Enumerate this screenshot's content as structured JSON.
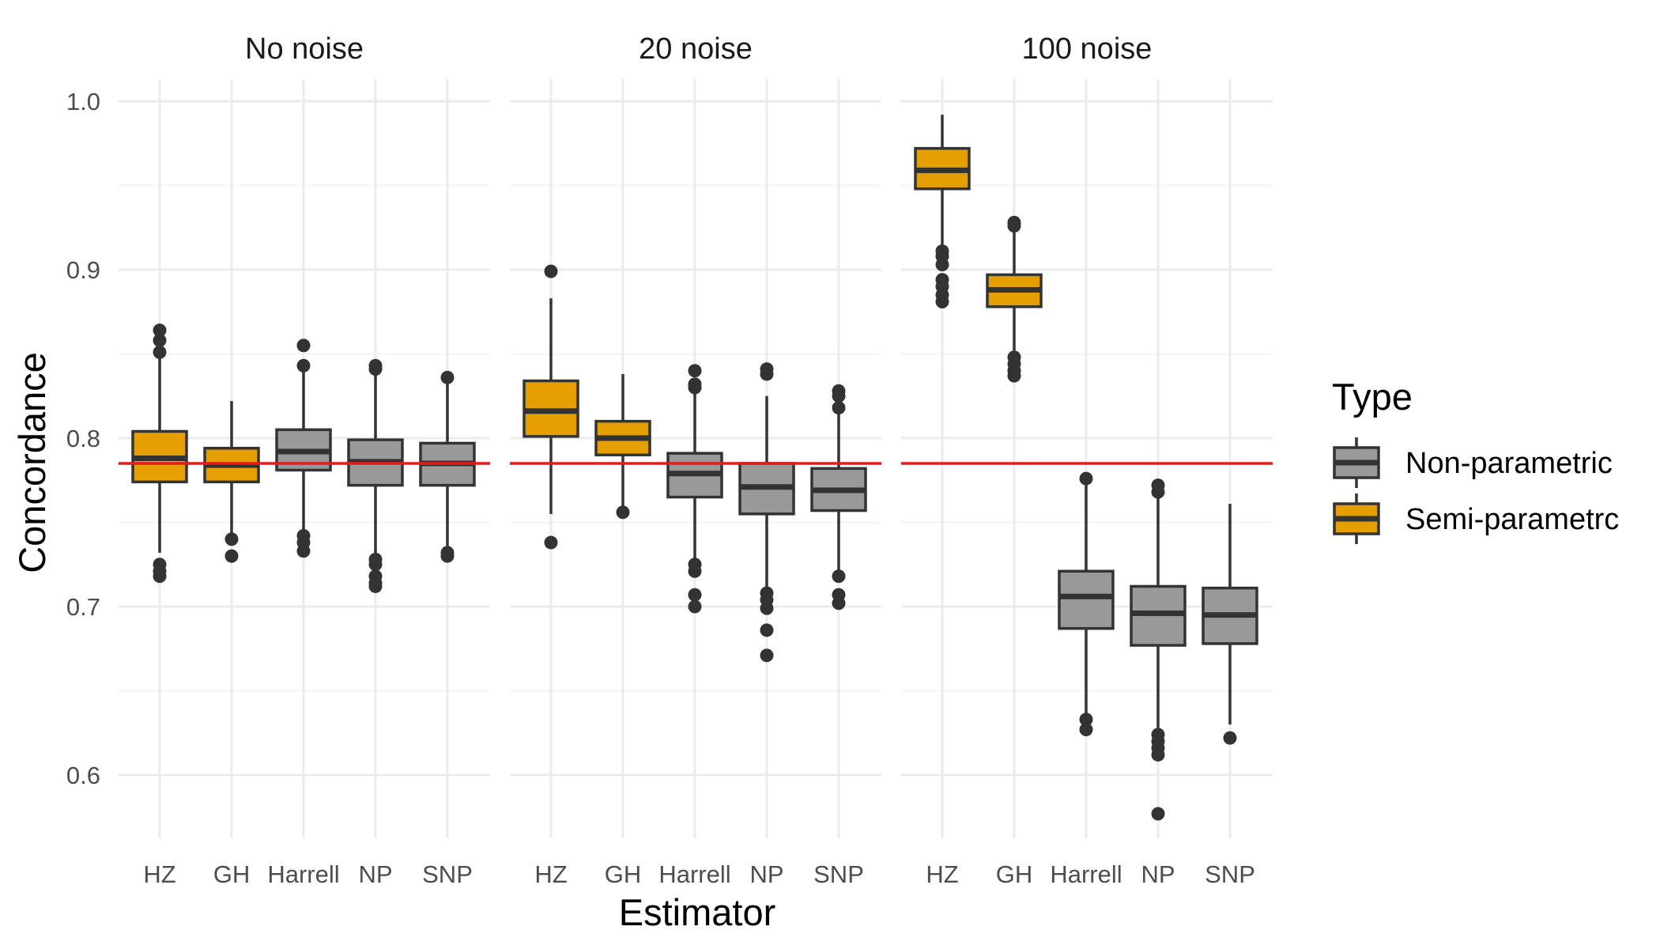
{
  "chart_data": {
    "type": "boxplot",
    "xlabel": "Estimator",
    "ylabel": "Concordance",
    "ylim": [
      0.56,
      1.02
    ],
    "y_ticks": [
      "0.6",
      "0.7",
      "0.8",
      "0.9",
      "1.0"
    ],
    "y_tick_values": [
      0.6,
      0.7,
      0.8,
      0.9,
      1.0
    ],
    "reference_line": 0.785,
    "reference_color": "#e41a1c",
    "legend": {
      "title": "Type",
      "position": "right",
      "items": [
        {
          "label": "Non-parametric",
          "color": "#999999"
        },
        {
          "label": "Semi-parametrc",
          "color": "#E69F00"
        }
      ]
    },
    "panels": [
      {
        "title": "No noise",
        "categories": [
          "HZ",
          "GH",
          "Harrell",
          "NP",
          "SNP"
        ],
        "boxes": [
          {
            "type": "Semi-parametrc",
            "lower": 0.732,
            "q1": 0.774,
            "median": 0.788,
            "q3": 0.804,
            "upper": 0.848,
            "outliers": [
              0.864,
              0.858,
              0.851,
              0.725,
              0.721,
              0.718
            ]
          },
          {
            "type": "Semi-parametrc",
            "lower": 0.742,
            "q1": 0.774,
            "median": 0.784,
            "q3": 0.794,
            "upper": 0.822,
            "outliers": [
              0.74,
              0.73
            ]
          },
          {
            "type": "Non-parametric",
            "lower": 0.745,
            "q1": 0.781,
            "median": 0.792,
            "q3": 0.805,
            "upper": 0.841,
            "outliers": [
              0.855,
              0.843,
              0.742,
              0.738,
              0.733
            ]
          },
          {
            "type": "Non-parametric",
            "lower": 0.73,
            "q1": 0.772,
            "median": 0.786,
            "q3": 0.799,
            "upper": 0.84,
            "outliers": [
              0.843,
              0.841,
              0.728,
              0.725,
              0.718,
              0.714,
              0.712
            ]
          },
          {
            "type": "Non-parametric",
            "lower": 0.734,
            "q1": 0.772,
            "median": 0.785,
            "q3": 0.797,
            "upper": 0.834,
            "outliers": [
              0.836,
              0.732,
              0.73
            ]
          }
        ]
      },
      {
        "title": "20 noise",
        "categories": [
          "HZ",
          "GH",
          "Harrell",
          "NP",
          "SNP"
        ],
        "boxes": [
          {
            "type": "Semi-parametrc",
            "lower": 0.755,
            "q1": 0.801,
            "median": 0.816,
            "q3": 0.834,
            "upper": 0.883,
            "outliers": [
              0.899,
              0.738
            ]
          },
          {
            "type": "Semi-parametrc",
            "lower": 0.758,
            "q1": 0.79,
            "median": 0.8,
            "q3": 0.81,
            "upper": 0.838,
            "outliers": [
              0.756
            ]
          },
          {
            "type": "Non-parametric",
            "lower": 0.728,
            "q1": 0.765,
            "median": 0.779,
            "q3": 0.791,
            "upper": 0.828,
            "outliers": [
              0.84,
              0.832,
              0.83,
              0.725,
              0.721,
              0.707,
              0.7
            ]
          },
          {
            "type": "Non-parametric",
            "lower": 0.71,
            "q1": 0.755,
            "median": 0.771,
            "q3": 0.785,
            "upper": 0.825,
            "outliers": [
              0.841,
              0.838,
              0.708,
              0.704,
              0.699,
              0.686,
              0.671
            ]
          },
          {
            "type": "Non-parametric",
            "lower": 0.72,
            "q1": 0.757,
            "median": 0.769,
            "q3": 0.782,
            "upper": 0.815,
            "outliers": [
              0.828,
              0.825,
              0.818,
              0.718,
              0.707,
              0.702
            ]
          }
        ]
      },
      {
        "title": "100 noise",
        "categories": [
          "HZ",
          "GH",
          "Harrell",
          "NP",
          "SNP"
        ],
        "boxes": [
          {
            "type": "Semi-parametrc",
            "lower": 0.914,
            "q1": 0.948,
            "median": 0.959,
            "q3": 0.972,
            "upper": 0.992,
            "outliers": [
              0.911,
              0.908,
              0.903,
              0.894,
              0.89,
              0.885,
              0.881
            ]
          },
          {
            "type": "Semi-parametrc",
            "lower": 0.852,
            "q1": 0.878,
            "median": 0.888,
            "q3": 0.897,
            "upper": 0.924,
            "outliers": [
              0.928,
              0.926,
              0.848,
              0.844,
              0.84,
              0.837
            ]
          },
          {
            "type": "Non-parametric",
            "lower": 0.636,
            "q1": 0.687,
            "median": 0.706,
            "q3": 0.721,
            "upper": 0.774,
            "outliers": [
              0.776,
              0.633,
              0.627
            ]
          },
          {
            "type": "Non-parametric",
            "lower": 0.628,
            "q1": 0.677,
            "median": 0.696,
            "q3": 0.712,
            "upper": 0.765,
            "outliers": [
              0.772,
              0.768,
              0.624,
              0.62,
              0.616,
              0.612,
              0.577
            ]
          },
          {
            "type": "Non-parametric",
            "lower": 0.63,
            "q1": 0.678,
            "median": 0.695,
            "q3": 0.711,
            "upper": 0.761,
            "outliers": [
              0.622
            ]
          }
        ]
      }
    ]
  }
}
